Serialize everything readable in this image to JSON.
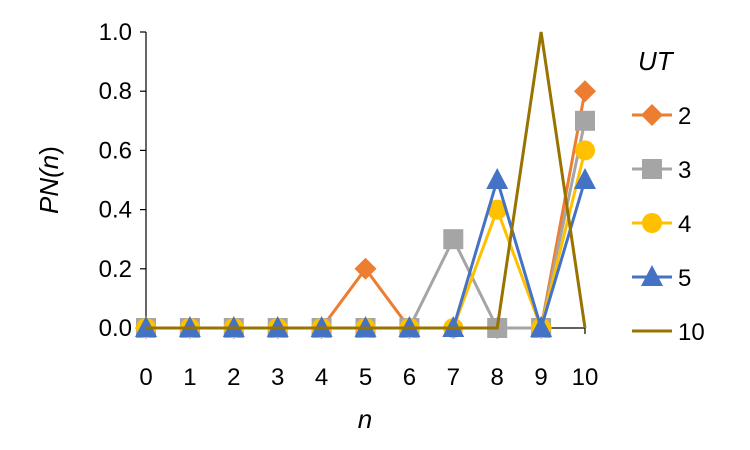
{
  "chart_data": {
    "type": "line",
    "xlabel_main": "n",
    "ylabel_parts": {
      "pre": "PN(",
      "var": "n",
      "post": ")"
    },
    "x": [
      0,
      1,
      2,
      3,
      4,
      5,
      6,
      7,
      8,
      9,
      10
    ],
    "x_ticks": [
      "0",
      "1",
      "2",
      "3",
      "4",
      "5",
      "6",
      "7",
      "8",
      "9",
      "10"
    ],
    "ylim": [
      0,
      1
    ],
    "y_ticks": [
      "0.0",
      "0.2",
      "0.4",
      "0.6",
      "0.8",
      "1.0"
    ],
    "y_tick_values": [
      0,
      0.2,
      0.4,
      0.6,
      0.8,
      1.0
    ],
    "legend_title": "UT",
    "legend_position": "right",
    "series": [
      {
        "name": "2",
        "color": "#ED7D31",
        "marker": "diamond",
        "values": [
          0,
          0,
          0,
          0,
          0,
          0.2,
          0,
          0,
          0,
          0,
          0.8
        ]
      },
      {
        "name": "3",
        "color": "#A5A5A5",
        "marker": "square",
        "values": [
          0,
          0,
          0,
          0,
          0,
          0,
          0,
          0.3,
          0,
          0,
          0.7
        ]
      },
      {
        "name": "4",
        "color": "#FFC000",
        "marker": "circle",
        "values": [
          0,
          0,
          0,
          0,
          0,
          0,
          0,
          0,
          0.4,
          0,
          0.6
        ]
      },
      {
        "name": "5",
        "color": "#4472C4",
        "marker": "triangle",
        "values": [
          0,
          0,
          0,
          0,
          0,
          0,
          0,
          0,
          0.5,
          0,
          0.5
        ]
      },
      {
        "name": "10",
        "color": "#997300",
        "marker": "none",
        "values": [
          0,
          0,
          0,
          0,
          0,
          0,
          0,
          0,
          0,
          1.0,
          0
        ]
      }
    ]
  }
}
